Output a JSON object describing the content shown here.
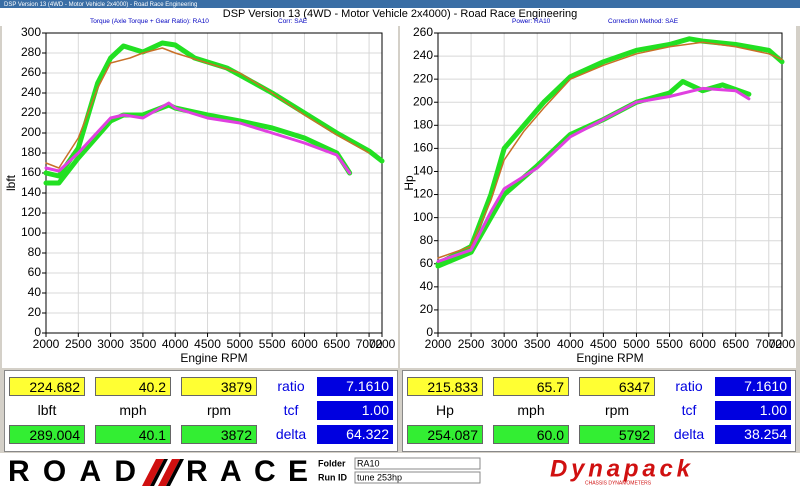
{
  "window": {
    "caption": "DSP Version 13 (4WD - Motor Vehicle 2x4000) - Road Race Engineering"
  },
  "header": {
    "title": "DSP Version 13 (4WD - Motor Vehicle 2x4000) - Road Race Engineering",
    "labels": [
      "Torque (Axle Torque + Gear Ratio): RA10",
      "Corr: SAE",
      "Power: RA10",
      "Correction Method: SAE"
    ]
  },
  "chart_data": [
    {
      "type": "line",
      "xlabel": "Engine RPM",
      "ylabel": "lbft",
      "xlim": [
        2000,
        7200
      ],
      "ylim": [
        0,
        300
      ],
      "xticks": [
        2000,
        2500,
        3000,
        3500,
        4000,
        4500,
        5000,
        5500,
        6000,
        6500,
        7000,
        7200
      ],
      "yticks": [
        0,
        20,
        40,
        60,
        80,
        100,
        120,
        140,
        160,
        180,
        200,
        220,
        240,
        260,
        280,
        300
      ],
      "grid": true,
      "series": [
        {
          "color": "#22e022",
          "x": [
            2000,
            2200,
            2500,
            2800,
            3000,
            3200,
            3500,
            3800,
            4000,
            4300,
            4800,
            5000,
            5500,
            6000,
            6500,
            7000,
            7200
          ],
          "values": [
            160,
            157,
            185,
            250,
            275,
            287,
            281,
            290,
            288,
            275,
            265,
            258,
            240,
            220,
            200,
            182,
            172
          ]
        },
        {
          "color": "#c87028",
          "x": [
            2000,
            2200,
            2500,
            2800,
            3000,
            3300,
            3500,
            3800,
            4000,
            4500,
            5000,
            5500,
            6000,
            6500,
            7000
          ],
          "values": [
            170,
            165,
            195,
            245,
            270,
            275,
            280,
            285,
            280,
            270,
            260,
            240,
            218,
            198,
            180
          ]
        },
        {
          "color": "#22e022",
          "x": [
            2000,
            2200,
            2500,
            3000,
            3200,
            3500,
            3900,
            4000,
            4500,
            5000,
            5500,
            6000,
            6500,
            6700
          ],
          "values": [
            150,
            150,
            175,
            212,
            218,
            218,
            228,
            225,
            218,
            212,
            205,
            195,
            180,
            160
          ]
        },
        {
          "color": "#e040e0",
          "x": [
            2000,
            2200,
            2500,
            3000,
            3200,
            3500,
            3900,
            4000,
            4500,
            5000,
            5500,
            6000,
            6500,
            6700
          ],
          "values": [
            165,
            162,
            180,
            215,
            218,
            215,
            230,
            225,
            215,
            210,
            200,
            190,
            178,
            160
          ]
        }
      ]
    },
    {
      "type": "line",
      "xlabel": "Engine RPM",
      "ylabel": "Hp",
      "xlim": [
        2000,
        7200
      ],
      "ylim": [
        0,
        260
      ],
      "xticks": [
        2000,
        2500,
        3000,
        3500,
        4000,
        4500,
        5000,
        5500,
        6000,
        6500,
        7000,
        7200
      ],
      "yticks": [
        0,
        20,
        40,
        60,
        80,
        100,
        120,
        140,
        160,
        180,
        200,
        220,
        240,
        260
      ],
      "grid": true,
      "series": [
        {
          "color": "#22e022",
          "x": [
            2000,
            2500,
            2800,
            3000,
            3300,
            3600,
            4000,
            4500,
            5000,
            5500,
            5800,
            6000,
            6500,
            7000,
            7200
          ],
          "values": [
            60,
            75,
            120,
            160,
            180,
            200,
            222,
            235,
            245,
            250,
            255,
            253,
            250,
            245,
            235
          ]
        },
        {
          "color": "#c87028",
          "x": [
            2000,
            2500,
            2800,
            3000,
            3300,
            3600,
            4000,
            4500,
            5000,
            5500,
            6000,
            6500,
            7000,
            7200
          ],
          "values": [
            65,
            75,
            115,
            150,
            175,
            195,
            220,
            232,
            242,
            248,
            252,
            248,
            242,
            237
          ]
        },
        {
          "color": "#22e022",
          "x": [
            2000,
            2500,
            2800,
            3000,
            3500,
            4000,
            4500,
            5000,
            5500,
            5700,
            6000,
            6300,
            6700
          ],
          "values": [
            58,
            70,
            100,
            120,
            145,
            172,
            185,
            200,
            208,
            218,
            210,
            215,
            207
          ]
        },
        {
          "color": "#e040e0",
          "x": [
            2000,
            2500,
            2800,
            3000,
            3500,
            4000,
            4500,
            5000,
            5500,
            6000,
            6500,
            6700
          ],
          "values": [
            62,
            72,
            105,
            125,
            143,
            170,
            185,
            200,
            205,
            212,
            210,
            203
          ]
        }
      ]
    }
  ],
  "panels": [
    {
      "rows": [
        [
          "224.682",
          "40.2",
          "3879",
          "ratio",
          "7.1610"
        ],
        [
          "lbft",
          "mph",
          "rpm",
          "tcf",
          "1.00"
        ],
        [
          "289.004",
          "40.1",
          "3872",
          "delta",
          "64.322"
        ]
      ]
    },
    {
      "rows": [
        [
          "215.833",
          "65.7",
          "6347",
          "ratio",
          "7.1610"
        ],
        [
          "Hp",
          "mph",
          "rpm",
          "tcf",
          "1.00"
        ],
        [
          "254.087",
          "60.0",
          "5792",
          "delta",
          "38.254"
        ]
      ]
    }
  ],
  "footer": {
    "logo": [
      "ROAD",
      "RACE"
    ],
    "folder_label": "Folder",
    "folder": "RA10",
    "run_label": "Run ID",
    "run": "tune 253hp",
    "brand": "Dynapack",
    "brand_sub": "CHASSIS DYNAMOMETERS"
  }
}
